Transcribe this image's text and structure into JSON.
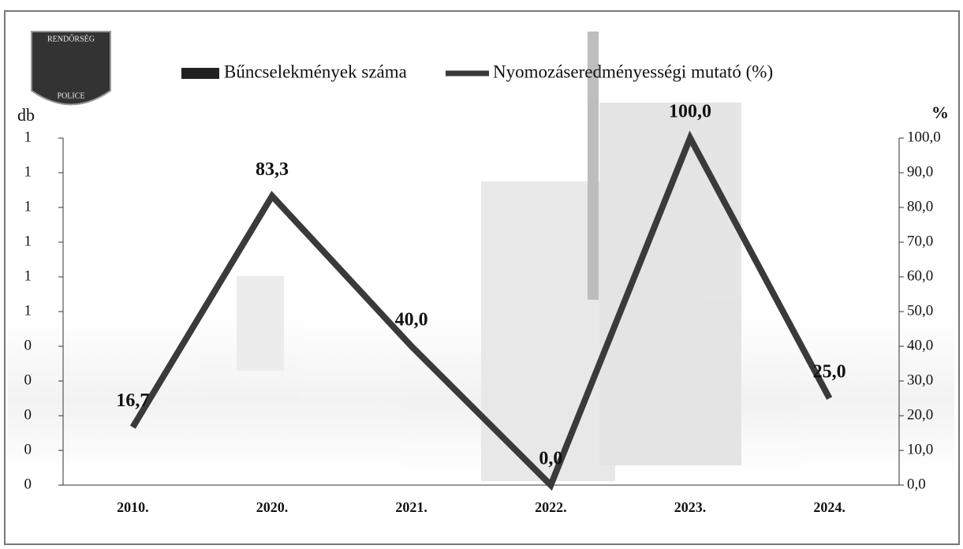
{
  "logo": {
    "top": "RENDŐRSÉG",
    "bottom": "POLICE"
  },
  "chart_data": {
    "type": "bar-line",
    "y_label": "db",
    "y2_label": "%",
    "categories": [
      "2010.",
      "2020.",
      "2021.",
      "2022.",
      "2023.",
      "2024."
    ],
    "series": [
      {
        "name": "Bűncselekmények száma",
        "type": "bar",
        "color": "#222222",
        "values": [
          0,
          0,
          0,
          0,
          0,
          0
        ]
      },
      {
        "name": "Nyomozáseredményességi mutató (%)",
        "type": "line",
        "axis": "y2",
        "color": "#3a3a3a",
        "values": [
          16.7,
          83.3,
          40.0,
          0.0,
          100.0,
          25.0
        ],
        "value_labels": [
          "16,7",
          "83,3",
          "40,0",
          "0,0",
          "100,0",
          "25,0"
        ]
      }
    ],
    "ylim": [
      0,
      1
    ],
    "yticks": [
      {
        "value": 0,
        "label": "0"
      },
      {
        "value": 0.1,
        "label": "0"
      },
      {
        "value": 0.2,
        "label": "0"
      },
      {
        "value": 0.3,
        "label": "0"
      },
      {
        "value": 0.4,
        "label": "0"
      },
      {
        "value": 0.5,
        "label": "1"
      },
      {
        "value": 0.6,
        "label": "1"
      },
      {
        "value": 0.7,
        "label": "1"
      },
      {
        "value": 0.8,
        "label": "1"
      },
      {
        "value": 0.9,
        "label": "1"
      },
      {
        "value": 1.0,
        "label": "1"
      }
    ],
    "y2lim": [
      0,
      100
    ],
    "y2ticks": [
      {
        "value": 0,
        "label": "0,0"
      },
      {
        "value": 10,
        "label": "10,0"
      },
      {
        "value": 20,
        "label": "20,0"
      },
      {
        "value": 30,
        "label": "30,0"
      },
      {
        "value": 40,
        "label": "40,0"
      },
      {
        "value": 50,
        "label": "50,0"
      },
      {
        "value": 60,
        "label": "60,0"
      },
      {
        "value": 70,
        "label": "70,0"
      },
      {
        "value": 80,
        "label": "80,0"
      },
      {
        "value": 90,
        "label": "90,0"
      },
      {
        "value": 100,
        "label": "100,0"
      }
    ]
  }
}
